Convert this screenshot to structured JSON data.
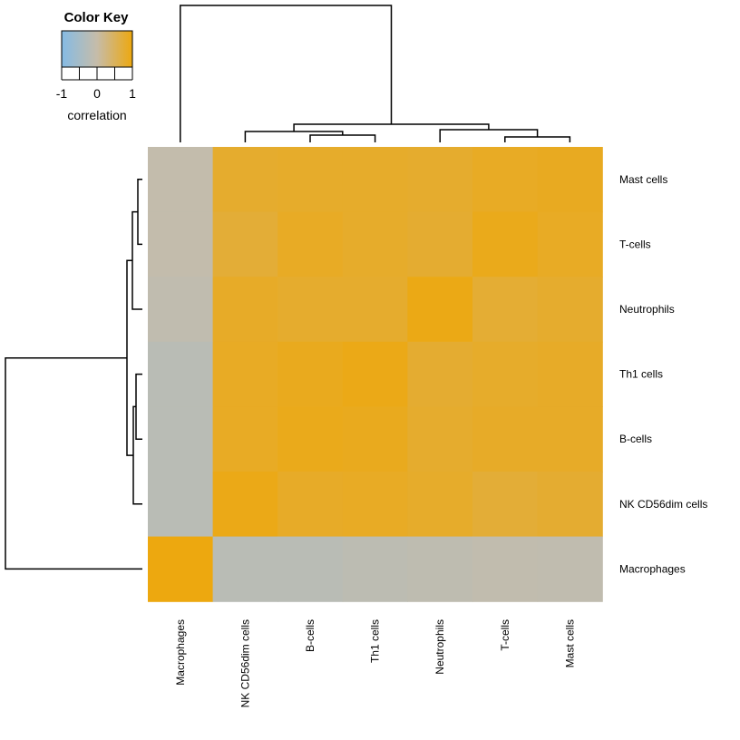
{
  "chart_data": {
    "type": "heatmap",
    "title": "",
    "xlabel": "",
    "ylabel": "",
    "color_key": {
      "title": "Color Key",
      "label": "correlation",
      "ticks": [
        "-1",
        "0",
        "1"
      ],
      "range": [
        -1,
        1
      ],
      "colors": {
        "low": "#85BBE5",
        "mid": "#C6BCA9",
        "high": "#EDA80F"
      }
    },
    "columns": [
      "Macrophages",
      "NK CD56dim cells",
      "B-cells",
      "Th1 cells",
      "Neutrophils",
      "T-cells",
      "Mast cells"
    ],
    "rows": [
      "Mast cells",
      "T-cells",
      "Neutrophils",
      "Th1 cells",
      "B-cells",
      "NK CD56dim cells",
      "Macrophages"
    ],
    "values": [
      [
        -0.05,
        0.8,
        0.82,
        0.82,
        0.8,
        0.86,
        0.88
      ],
      [
        -0.05,
        0.74,
        0.86,
        0.82,
        0.78,
        0.92,
        0.86
      ],
      [
        -0.1,
        0.84,
        0.8,
        0.8,
        0.96,
        0.76,
        0.8
      ],
      [
        -0.2,
        0.86,
        0.9,
        0.95,
        0.78,
        0.82,
        0.84
      ],
      [
        -0.2,
        0.86,
        0.92,
        0.9,
        0.8,
        0.84,
        0.84
      ],
      [
        -0.2,
        0.95,
        0.84,
        0.86,
        0.82,
        0.74,
        0.78
      ],
      [
        1.0,
        -0.2,
        -0.2,
        -0.15,
        -0.12,
        -0.08,
        -0.1
      ]
    ]
  }
}
